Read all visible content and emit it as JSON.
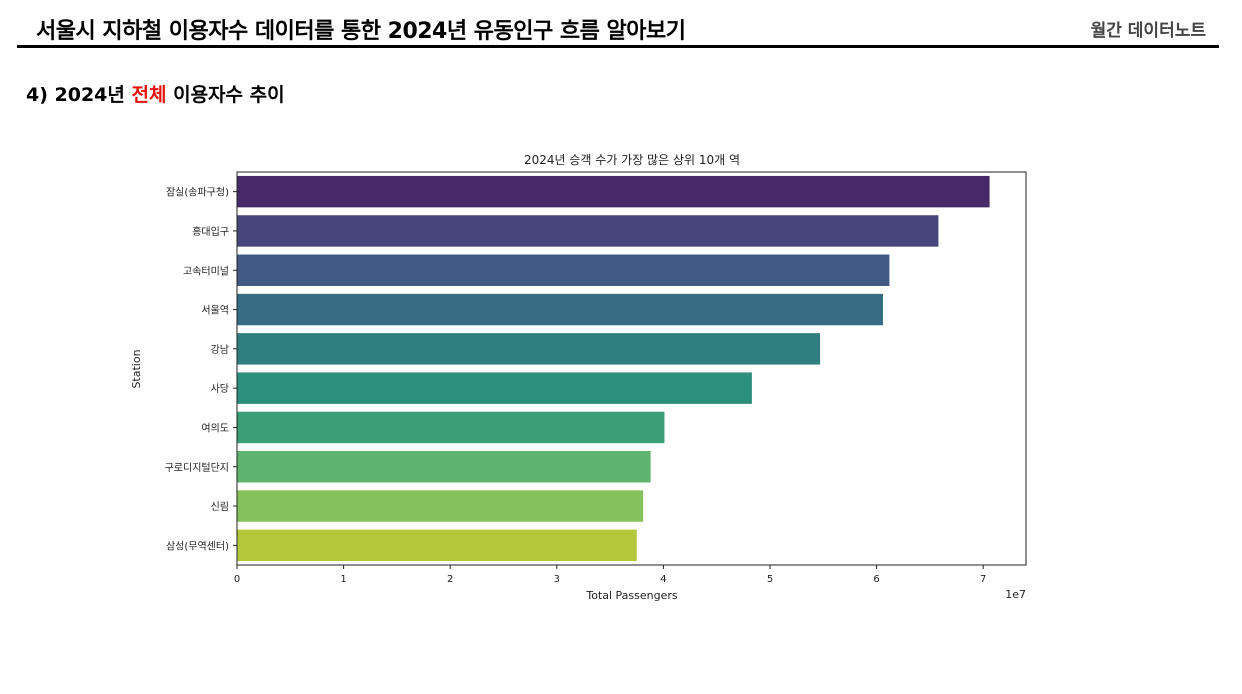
{
  "header": {
    "title": "서울시 지하철 이용자수 데이터를 통한 2024년 유동인구 흐름 알아보기",
    "brand": "월간 데이터노트"
  },
  "section": {
    "prefix": "4) 2024년 ",
    "highlight": "전체",
    "suffix": " 이용자수 추이",
    "highlight_color": "#e8120c"
  },
  "chart_data": {
    "type": "bar",
    "orientation": "horizontal",
    "title": "2024년 승객 수가 가장 많은 상위 10개 역",
    "xlabel": "Total Passengers",
    "ylabel": "Station",
    "x_scale_label": "1e7",
    "x_ticks": [
      "0",
      "1",
      "2",
      "3",
      "4",
      "5",
      "6",
      "7"
    ],
    "xlim": [
      0,
      74000000
    ],
    "categories": [
      "잠실(송파구청)",
      "홍대입구",
      "고속터미널",
      "서울역",
      "강남",
      "사당",
      "여의도",
      "구로디지털단지",
      "신림",
      "삼성(무역센터)"
    ],
    "values": [
      70600000,
      65800000,
      61200000,
      60600000,
      54700000,
      48300000,
      40100000,
      38800000,
      38100000,
      37500000
    ],
    "colors": [
      "#482a6a",
      "#47457c",
      "#415a85",
      "#376d84",
      "#2f7e80",
      "#2c8e7d",
      "#3a9f76",
      "#5db46e",
      "#86c25c",
      "#b2c73a"
    ],
    "grid": false,
    "legend": "none"
  }
}
